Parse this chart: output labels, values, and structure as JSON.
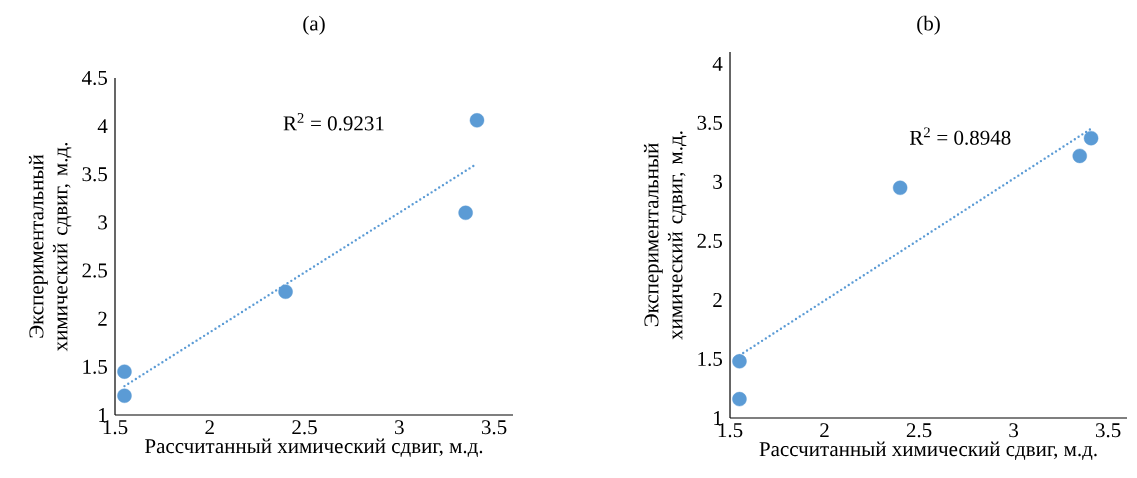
{
  "chart_data": [
    {
      "type": "scatter",
      "title": "(a)",
      "xlabel": "Рассчитанный химический сдвиг, м.д.",
      "ylabel": "Экспериментальный химический сдвиг, м.д.",
      "annotations": [
        "R$^{2}$ = 0.9231"
      ],
      "xlim": [
        1.5,
        3.6
      ],
      "ylim": [
        1,
        4.5
      ],
      "xticks": [
        1.5,
        2,
        2.5,
        3,
        3.5
      ],
      "yticks": [
        1,
        1.5,
        2,
        2.5,
        3,
        3.5,
        4,
        4.5
      ],
      "grid": false,
      "series": [
        {
          "color": "#5b9bd5",
          "marker": "circle",
          "x": [
            1.55,
            1.55,
            2.4,
            3.35,
            3.41
          ],
          "values": [
            1.45,
            1.2,
            2.28,
            3.1,
            4.06
          ]
        },
        {
          "type": "line",
          "color": "#5b9bd5",
          "marker": "none",
          "line_style": "dotted",
          "x": [
            1.55,
            3.41
          ],
          "values": [
            1.3,
            3.61
          ]
        }
      ]
    },
    {
      "type": "scatter",
      "title": "(b)",
      "xlabel": "Рассчитанный химический сдвиг, м.д.",
      "ylabel": "Экспериментальный химический сдвиг, м.д.",
      "annotations": [
        "R$^{2}$ = 0.8948"
      ],
      "xlim": [
        1.5,
        3.6
      ],
      "ylim": [
        1,
        4.1
      ],
      "xticks": [
        1.5,
        2,
        2.5,
        3,
        3.5
      ],
      "yticks": [
        1,
        1.5,
        2,
        2.5,
        3,
        3.5,
        4
      ],
      "grid": false,
      "series": [
        {
          "color": "#5b9bd5",
          "marker": "circle",
          "x": [
            1.55,
            1.55,
            2.4,
            3.35,
            3.41
          ],
          "values": [
            1.48,
            1.16,
            2.95,
            3.22,
            3.37
          ]
        },
        {
          "type": "line",
          "color": "#5b9bd5",
          "marker": "none",
          "line_style": "dotted",
          "x": [
            1.55,
            3.41
          ],
          "values": [
            1.53,
            3.45
          ]
        }
      ]
    }
  ]
}
